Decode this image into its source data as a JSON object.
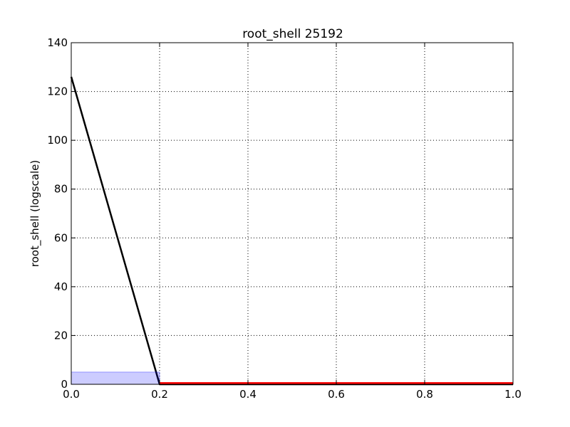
{
  "chart_data": {
    "type": "line",
    "title": "root_shell 25192",
    "xlabel": "",
    "ylabel": "root_shell (logscale)",
    "xlim": [
      0.0,
      1.0
    ],
    "ylim": [
      0,
      140
    ],
    "xticks": [
      "0.0",
      "0.2",
      "0.4",
      "0.6",
      "0.8",
      "1.0"
    ],
    "yticks": [
      "0",
      "20",
      "40",
      "60",
      "80",
      "100",
      "120",
      "140"
    ],
    "grid": true,
    "series": [
      {
        "type": "line",
        "color": "#000000",
        "x": [
          0.0,
          0.2,
          1.0
        ],
        "y": [
          126,
          0,
          0
        ]
      },
      {
        "type": "line",
        "color": "#ff0000",
        "x": [
          0.2,
          1.0
        ],
        "y": [
          0.5,
          0.5
        ]
      },
      {
        "type": "area",
        "color": "#0000ff",
        "opacity": 0.2,
        "x": [
          0.0,
          0.2
        ],
        "y": [
          5,
          5
        ]
      }
    ]
  }
}
